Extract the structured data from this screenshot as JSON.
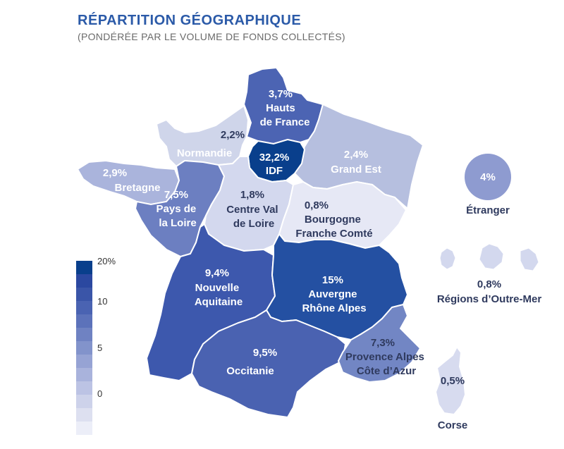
{
  "header": {
    "title": "RÉPARTITION GÉOGRAPHIQUE",
    "subtitle": "(PONDÉRÉE PAR LE VOLUME DE FONDS COLLECTÉS)"
  },
  "colors": {
    "title": "#2b5aa8",
    "scale": [
      "#eceef8",
      "#dde0f0",
      "#cdd2ea",
      "#bcc3e4",
      "#a9b3dc",
      "#96a3d4",
      "#8293cb",
      "#6f82c2",
      "#5c72ba",
      "#4a63b2",
      "#3a55a8",
      "#2b48a0",
      "#093f8c"
    ]
  },
  "legend": {
    "ticks": [
      "20%",
      "10",
      "5",
      "0"
    ]
  },
  "regions": {
    "hauts_de_france": {
      "pct_label": "3,7%",
      "name": "Hauts\nde France",
      "value": 3.7
    },
    "normandie": {
      "pct_label": "2,2%",
      "name": "Normandie",
      "value": 2.2
    },
    "idf": {
      "pct_label": "32,2%",
      "name": "IDF",
      "value": 32.2
    },
    "grand_est": {
      "pct_label": "2,4%",
      "name": "Grand Est",
      "value": 2.4
    },
    "bretagne": {
      "pct_label": "2,9%",
      "name": "Bretagne",
      "value": 2.9
    },
    "pays_de_la_loire": {
      "pct_label": "7,5%",
      "name": "Pays de\nla Loire",
      "value": 7.5
    },
    "centre_val_de_loire": {
      "pct_label": "1,8%",
      "name": "Centre Val\nde Loire",
      "value": 1.8
    },
    "bourgogne_franche_comte": {
      "pct_label": "0,8%",
      "name": "Bourgogne\nFranche Comté",
      "value": 0.8
    },
    "nouvelle_aquitaine": {
      "pct_label": "9,4%",
      "name": "Nouvelle\nAquitaine",
      "value": 9.4
    },
    "auvergne_rhone_alpes": {
      "pct_label": "15%",
      "name": "Auvergne\nRhône Alpes",
      "value": 15
    },
    "occitanie": {
      "pct_label": "9,5%",
      "name": "Occitanie",
      "value": 9.5
    },
    "paca": {
      "pct_label": "7,3%",
      "name": "Provence Alpes\nCôte d’Azur",
      "value": 7.3
    },
    "corse": {
      "pct_label": "0,5%",
      "name": "Corse",
      "value": 0.5
    },
    "etranger": {
      "pct_label": "4%",
      "name": "Étranger",
      "value": 4
    },
    "outre_mer": {
      "pct_label": "0,8%",
      "name": "Régions d’Outre-Mer",
      "value": 0.8
    }
  }
}
